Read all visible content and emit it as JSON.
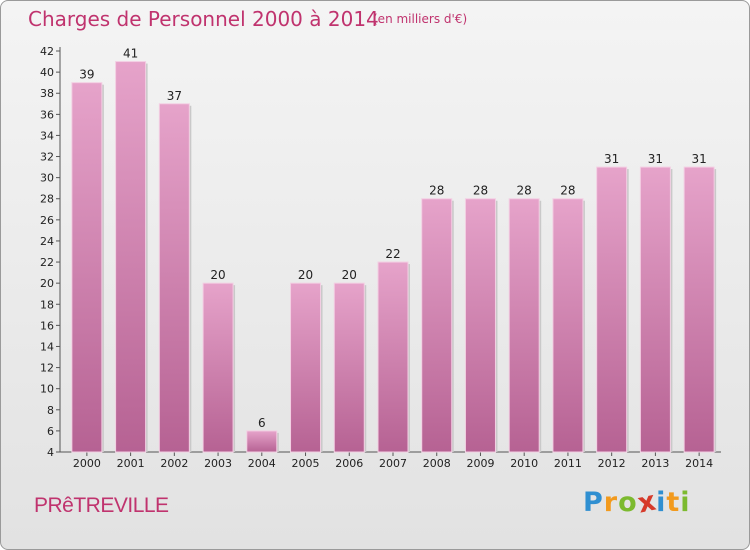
{
  "header": {
    "title": "Charges de Personnel 2000 à 2014",
    "subtitle": "(en milliers d'€)"
  },
  "footer": {
    "commune": "PRêTREVILLE",
    "logo": {
      "text": "Proxiti",
      "letters": [
        "P",
        "r",
        "o",
        "x",
        "i",
        "t",
        "i"
      ],
      "colors": [
        "#2f8fd1",
        "#f29a1d",
        "#7cba2f",
        "#d63a2a",
        "#2f8fd1",
        "#f29a1d",
        "#7cba2f"
      ]
    }
  },
  "colors": {
    "bar": "#e08cbd",
    "bar_dark": "#b66293",
    "accent": "#c0336e"
  },
  "chart_data": {
    "type": "bar",
    "title": "Charges de Personnel 2000 à 2014",
    "subtitle": "(en milliers d'€)",
    "categories": [
      "2000",
      "2001",
      "2002",
      "2003",
      "2004",
      "2005",
      "2006",
      "2007",
      "2008",
      "2009",
      "2010",
      "2011",
      "2012",
      "2013",
      "2014"
    ],
    "values": [
      39,
      41,
      37,
      20,
      6,
      20,
      20,
      22,
      28,
      28,
      28,
      28,
      31,
      31,
      31
    ],
    "ylim": [
      4,
      42
    ],
    "yticks": [
      4,
      6,
      8,
      10,
      12,
      14,
      16,
      18,
      20,
      22,
      24,
      26,
      28,
      30,
      32,
      34,
      36,
      38,
      40,
      42
    ],
    "grid": false,
    "legend": "none"
  }
}
